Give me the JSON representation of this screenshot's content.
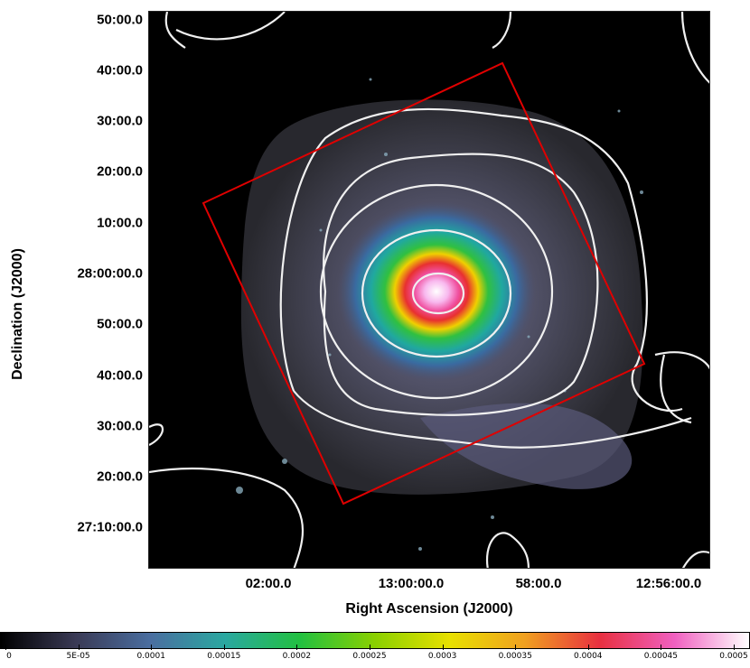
{
  "axes": {
    "xlabel": "Right Ascension (J2000)",
    "ylabel": "Declination (J2000)",
    "xticks": [
      "02:00.0",
      "13:00:00.0",
      "58:00.0",
      "12:56:00.0"
    ],
    "yticks": [
      "50:00.0",
      "40:00.0",
      "30:00.0",
      "20:00.0",
      "10:00.0",
      "28:00:00.0",
      "50:00.0",
      "40:00.0",
      "30:00.0",
      "20:00.0",
      "27:10:00.0"
    ]
  },
  "colorbar": {
    "ticks": [
      "0",
      "5E-05",
      "0.0001",
      "0.00015",
      "0.0002",
      "0.00025",
      "0.0003",
      "0.00035",
      "0.0004",
      "0.00045",
      "0.0005"
    ],
    "colors": [
      "#000000",
      "#3a3a55",
      "#4a6ea0",
      "#2aa8a0",
      "#22c040",
      "#8ad000",
      "#e8e000",
      "#f0a020",
      "#e83040",
      "#f060c0",
      "#ffffff"
    ]
  },
  "overlay": {
    "box_color": "#e00000",
    "contour_color": "#f0f0f0"
  }
}
